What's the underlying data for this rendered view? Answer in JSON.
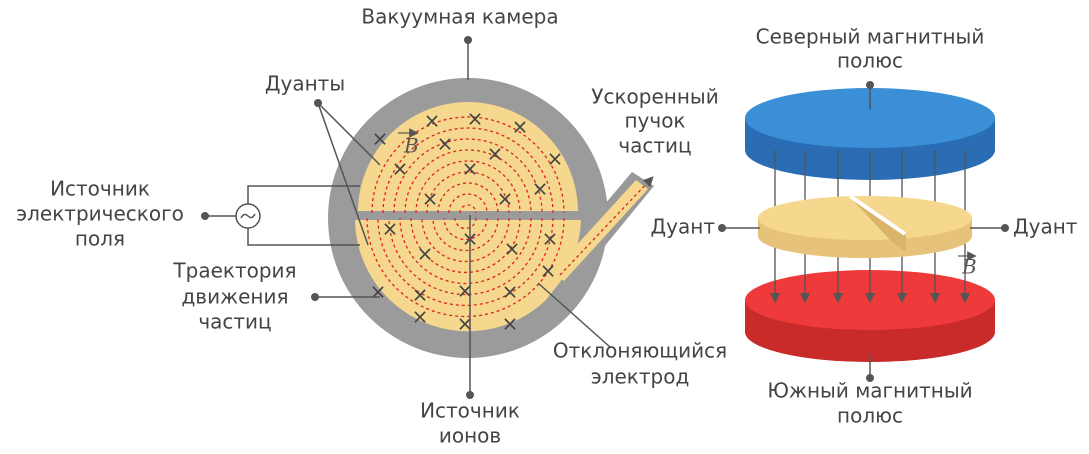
{
  "left": {
    "vacuum_chamber": "Вакуумная камера",
    "dees": "Дуанты",
    "field_source": [
      "Источник",
      "электрического",
      "поля"
    ],
    "trajectory": [
      "Траектория",
      "движения",
      "частиц"
    ],
    "ion_source": [
      "Источник",
      "ионов"
    ],
    "beam": [
      "Ускоренный",
      "пучок",
      "частиц"
    ],
    "deflector": [
      "Отклоняющийся",
      "электрод"
    ],
    "field": "B"
  },
  "right": {
    "north_pole": [
      "Северный магнитный",
      "полюс"
    ],
    "dee_left": "Дуант",
    "dee_right": "Дуант",
    "field": "B",
    "south_pole": [
      "Южный магнитный",
      "полюс"
    ]
  }
}
